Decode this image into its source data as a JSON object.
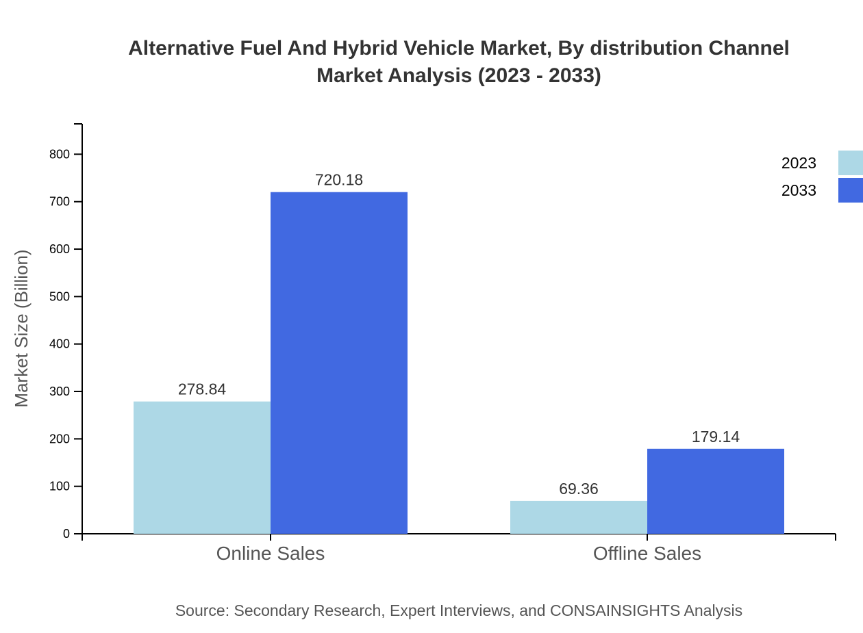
{
  "chart_data": {
    "type": "bar",
    "title_line1": "Alternative Fuel And Hybrid Vehicle Market, By distribution Channel",
    "title_line2": "Market Analysis (2023 - 2033)",
    "xlabel": "",
    "ylabel": "Market Size (Billion)",
    "ylim": [
      0,
      864
    ],
    "yticks": [
      0,
      100,
      200,
      300,
      400,
      500,
      600,
      700,
      800
    ],
    "categories": [
      "Online Sales",
      "Offline Sales"
    ],
    "series": [
      {
        "name": "2023",
        "color": "#ADD8E6",
        "values": [
          278.84,
          69.36
        ],
        "labels": [
          "278.84",
          "69.36"
        ]
      },
      {
        "name": "2033",
        "color": "#4169E1",
        "values": [
          720.18,
          179.14
        ],
        "labels": [
          "720.18",
          "179.14"
        ]
      }
    ],
    "legend_position": "top-right",
    "grid": false,
    "source": "Source: Secondary Research, Expert Interviews, and CONSAINSIGHTS Analysis"
  }
}
